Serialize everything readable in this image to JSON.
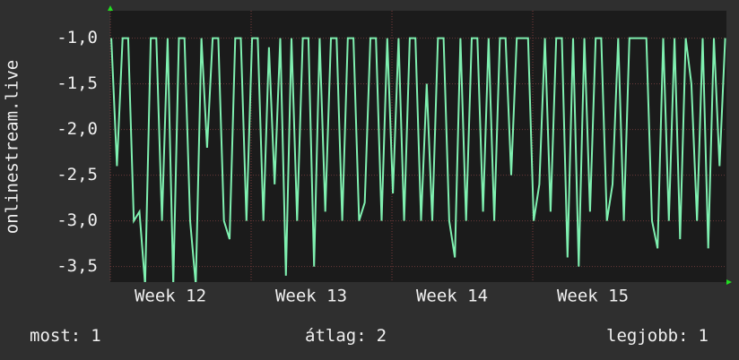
{
  "chart_data": {
    "type": "line",
    "y_label": "onlinestream.live",
    "xlim": [
      11.573,
      15.949
    ],
    "xticks": [
      {
        "value": 12,
        "label": "Week 12"
      },
      {
        "value": 13,
        "label": "Week 13"
      },
      {
        "value": 14,
        "label": "Week 14"
      },
      {
        "value": 15,
        "label": "Week 15"
      }
    ],
    "ylim": [
      -3.67,
      -0.7
    ],
    "yticks": [
      {
        "value": -1,
        "label": "-1,0"
      },
      {
        "value": -1.5,
        "label": "-1,5"
      },
      {
        "value": -2,
        "label": "-2,0"
      },
      {
        "value": -2.5,
        "label": "-2,5"
      },
      {
        "value": -3,
        "label": "-3,0"
      },
      {
        "value": -3.5,
        "label": "-3,5"
      }
    ],
    "grid": true,
    "series": [
      {
        "color": "#7ff0b0",
        "x": [
          11.58,
          11.62,
          11.66,
          11.7,
          11.74,
          11.78,
          11.82,
          11.86,
          11.9,
          11.94,
          11.98,
          12.02,
          12.06,
          12.1,
          12.14,
          12.18,
          12.22,
          12.26,
          12.3,
          12.34,
          12.38,
          12.42,
          12.46,
          12.5,
          12.54,
          12.58,
          12.62,
          12.66,
          12.7,
          12.74,
          12.78,
          12.82,
          12.86,
          12.9,
          12.94,
          12.98,
          13.02,
          13.06,
          13.1,
          13.14,
          13.18,
          13.22,
          13.26,
          13.3,
          13.34,
          13.38,
          13.42,
          13.46,
          13.5,
          13.54,
          13.58,
          13.62,
          13.66,
          13.7,
          13.74,
          13.78,
          13.82,
          13.86,
          13.9,
          13.94,
          13.98,
          14.02,
          14.06,
          14.1,
          14.14,
          14.18,
          14.22,
          14.26,
          14.3,
          14.34,
          14.38,
          14.42,
          14.46,
          14.5,
          14.54,
          14.58,
          14.62,
          14.66,
          14.7,
          14.74,
          14.78,
          14.82,
          14.86,
          14.9,
          14.94,
          14.98,
          15.02,
          15.06,
          15.1,
          15.14,
          15.18,
          15.22,
          15.26,
          15.3,
          15.34,
          15.38,
          15.42,
          15.46,
          15.5,
          15.54,
          15.58,
          15.62,
          15.66,
          15.7,
          15.74,
          15.78,
          15.82,
          15.86,
          15.9,
          15.94
        ],
        "values": [
          -1,
          -2.4,
          -1,
          -1,
          -3,
          -2.9,
          -3.7,
          -1,
          -1,
          -3,
          -1,
          -3.7,
          -1,
          -1,
          -3,
          -3.7,
          -1,
          -2.2,
          -1,
          -1,
          -3,
          -3.2,
          -1,
          -1,
          -3,
          -1,
          -1,
          -3,
          -1.1,
          -2.6,
          -1,
          -3.6,
          -1,
          -3,
          -1,
          -1,
          -3.5,
          -1,
          -2.9,
          -1,
          -1,
          -3,
          -1,
          -1,
          -3,
          -2.8,
          -1,
          -1,
          -3,
          -1,
          -2.7,
          -1,
          -3,
          -1,
          -1,
          -3,
          -1.5,
          -3,
          -1,
          -1,
          -3,
          -3.4,
          -1,
          -3,
          -1,
          -1,
          -2.9,
          -1,
          -3,
          -1,
          -1,
          -2.5,
          -1,
          -1,
          -1,
          -3,
          -2.6,
          -1,
          -2.9,
          -1,
          -1,
          -3.4,
          -1,
          -3.5,
          -1,
          -2.9,
          -1,
          -1,
          -3,
          -2.6,
          -1,
          -3,
          -1,
          -1,
          -1,
          -1,
          -3,
          -3.3,
          -1,
          -3,
          -1,
          -3.2,
          -1,
          -1.5,
          -3,
          -1,
          -3.3,
          -1,
          -2.4,
          -1
        ]
      }
    ],
    "stats": [
      {
        "label": "most:",
        "value": 1
      },
      {
        "label": "átlag:",
        "value": 2
      },
      {
        "label": "legjobb:",
        "value": 1
      }
    ]
  }
}
